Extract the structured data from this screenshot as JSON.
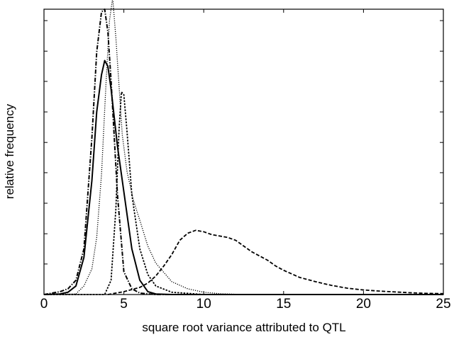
{
  "chart_data": {
    "type": "line",
    "title": "",
    "xlabel": "square root variance attributed to QTL",
    "ylabel": "relative frequency",
    "xlim": [
      0,
      25
    ],
    "ylim": [
      0,
      1
    ],
    "x_ticks": [
      0,
      5,
      10,
      15,
      20,
      25
    ],
    "x_tick_labels": [
      "0",
      "5",
      "10",
      "15",
      "20",
      "25"
    ],
    "y_ticks": [
      0.107,
      0.213,
      0.32,
      0.427,
      0.533,
      0.64,
      0.747,
      0.853,
      0.96
    ],
    "grid": false,
    "legend": "none",
    "series": [
      {
        "style": "solid",
        "color": "#000000",
        "x": [
          0,
          1,
          1.5,
          2,
          2.5,
          3,
          3.3,
          3.6,
          3.8,
          4.0,
          4.2,
          4.4,
          4.6,
          5.0,
          5.5,
          6.0,
          6.5,
          7.0,
          8.0,
          10.0,
          25.0
        ],
        "y": [
          0,
          0.002,
          0.008,
          0.03,
          0.13,
          0.4,
          0.64,
          0.77,
          0.82,
          0.8,
          0.72,
          0.62,
          0.52,
          0.36,
          0.16,
          0.05,
          0.01,
          0.002,
          0,
          0,
          0
        ]
      },
      {
        "style": "dash-dot",
        "color": "#000000",
        "x": [
          0,
          1,
          1.5,
          2,
          2.5,
          3,
          3.3,
          3.6,
          3.8,
          4.0,
          4.2,
          4.4,
          4.6,
          5.0,
          5.5,
          6.0,
          7.0,
          25.0
        ],
        "y": [
          0,
          0.01,
          0.02,
          0.05,
          0.16,
          0.55,
          0.85,
          0.99,
          1.0,
          0.92,
          0.75,
          0.55,
          0.35,
          0.08,
          0.02,
          0.005,
          0,
          0
        ]
      },
      {
        "style": "dotted",
        "color": "#000000",
        "x": [
          0,
          2,
          2.5,
          3.0,
          3.3,
          3.6,
          3.9,
          4.1,
          4.3,
          4.5,
          4.7,
          4.9,
          5.2,
          5.6,
          6.0,
          6.5,
          7.0,
          8.0,
          9.0,
          10.0,
          11.0,
          12.0,
          13.0,
          14.0,
          15.0,
          25.0
        ],
        "y": [
          0,
          0.002,
          0.03,
          0.09,
          0.2,
          0.42,
          0.76,
          0.96,
          1.04,
          0.9,
          0.73,
          0.56,
          0.43,
          0.33,
          0.26,
          0.17,
          0.11,
          0.045,
          0.02,
          0.008,
          0.003,
          0.001,
          0,
          0,
          0,
          0
        ]
      },
      {
        "style": "short-dash",
        "color": "#000000",
        "x": [
          0,
          3.8,
          4.2,
          4.5,
          4.7,
          4.85,
          5.0,
          5.2,
          5.5,
          6.0,
          6.5,
          7.0,
          8.0,
          10.0,
          25.0
        ],
        "y": [
          0,
          0,
          0.05,
          0.3,
          0.58,
          0.71,
          0.7,
          0.57,
          0.35,
          0.16,
          0.07,
          0.03,
          0.008,
          0,
          0
        ]
      },
      {
        "style": "dashed",
        "color": "#000000",
        "x": [
          4,
          5,
          6,
          6.5,
          7,
          7.5,
          8,
          8.5,
          9,
          9.5,
          10,
          10.5,
          11,
          11.5,
          12,
          12.5,
          13,
          13.5,
          14,
          14.5,
          15,
          16,
          17,
          18,
          19,
          20,
          21,
          22,
          23,
          24,
          25
        ],
        "y": [
          0,
          0.01,
          0.025,
          0.04,
          0.065,
          0.1,
          0.14,
          0.19,
          0.215,
          0.225,
          0.22,
          0.21,
          0.205,
          0.2,
          0.19,
          0.17,
          0.15,
          0.135,
          0.12,
          0.1,
          0.085,
          0.06,
          0.045,
          0.032,
          0.022,
          0.016,
          0.012,
          0.009,
          0.006,
          0.004,
          0.003
        ]
      }
    ]
  }
}
